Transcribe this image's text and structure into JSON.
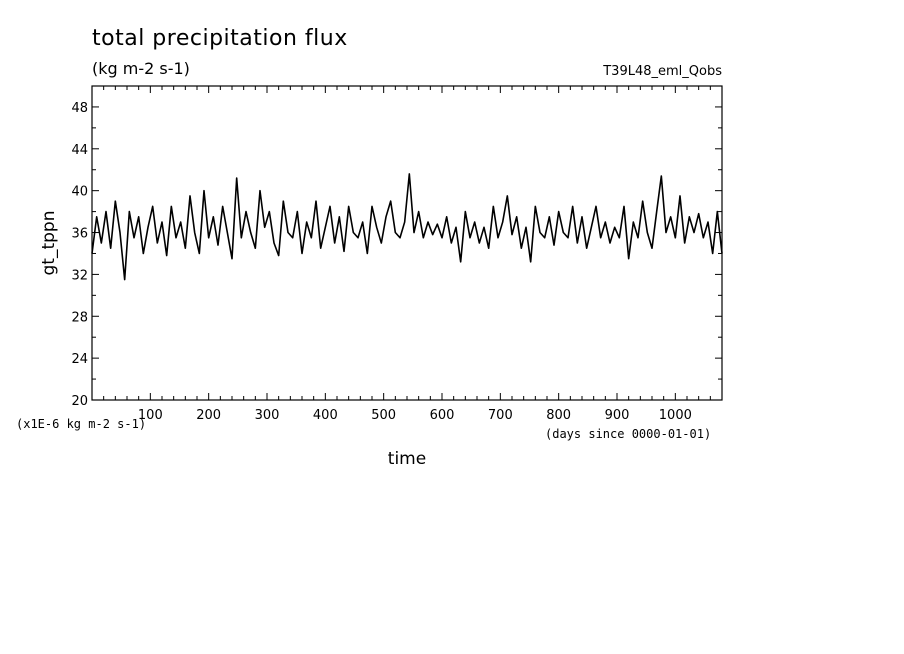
{
  "chart_data": {
    "type": "line",
    "title": "total precipitation flux",
    "subtitle": "(kg m-2 s-1)",
    "run_label": "T39L48_eml_Qobs",
    "xlabel": "time",
    "ylabel": "gt_tppn",
    "y_scale_note": "(x1E-6 kg m-2 s-1)",
    "x_units": "(days since 0000-01-01)",
    "xlim": [
      0,
      1080
    ],
    "ylim": [
      20,
      50
    ],
    "x_ticks": [
      100,
      200,
      300,
      400,
      500,
      600,
      700,
      800,
      900,
      1000
    ],
    "y_ticks": [
      20,
      24,
      28,
      32,
      36,
      40,
      44,
      48
    ],
    "grid": false,
    "line_color": "#000000",
    "series": [
      {
        "x": [
          0,
          8,
          16,
          24,
          32,
          40,
          48,
          56,
          64,
          72,
          80,
          88,
          96,
          104,
          112,
          120,
          128,
          136,
          144,
          152,
          160,
          168,
          176,
          184,
          192,
          200,
          208,
          216,
          224,
          232,
          240,
          248,
          256,
          264,
          272,
          280,
          288,
          296,
          304,
          312,
          320,
          328,
          336,
          344,
          352,
          360,
          368,
          376,
          384,
          392,
          400,
          408,
          416,
          424,
          432,
          440,
          448,
          456,
          464,
          472,
          480,
          488,
          496,
          504,
          512,
          520,
          528,
          536,
          544,
          552,
          560,
          568,
          576,
          584,
          592,
          600,
          608,
          616,
          624,
          632,
          640,
          648,
          656,
          664,
          672,
          680,
          688,
          696,
          704,
          712,
          720,
          728,
          736,
          744,
          752,
          760,
          768,
          776,
          784,
          792,
          800,
          808,
          816,
          824,
          832,
          840,
          848,
          856,
          864,
          872,
          880,
          888,
          896,
          904,
          912,
          920,
          928,
          936,
          944,
          952,
          960,
          968,
          976,
          984,
          992,
          1000,
          1008,
          1016,
          1024,
          1032,
          1040,
          1048,
          1056,
          1064,
          1072,
          1080
        ],
        "values": [
          34.0,
          37.5,
          35.0,
          38.0,
          34.5,
          39.0,
          36.0,
          31.5,
          38.0,
          35.5,
          37.5,
          34.0,
          36.5,
          38.5,
          35.0,
          37.0,
          33.8,
          38.5,
          35.5,
          37.0,
          34.5,
          39.5,
          36.0,
          34.0,
          40.0,
          35.5,
          37.5,
          34.8,
          38.5,
          36.0,
          33.5,
          41.2,
          35.5,
          38.0,
          36.0,
          34.5,
          40.0,
          36.5,
          38.0,
          35.0,
          33.8,
          39.0,
          36.0,
          35.5,
          38.0,
          34.0,
          37.0,
          35.5,
          39.0,
          34.5,
          36.5,
          38.5,
          35.0,
          37.5,
          34.2,
          38.5,
          36.0,
          35.5,
          37.0,
          34.0,
          38.5,
          36.5,
          35.0,
          37.5,
          39.0,
          36.0,
          35.5,
          37.0,
          41.6,
          36.0,
          38.0,
          35.5,
          37.0,
          35.8,
          36.8,
          35.5,
          37.5,
          35.0,
          36.5,
          33.2,
          38.0,
          35.5,
          37.0,
          35.0,
          36.5,
          34.5,
          38.5,
          35.5,
          37.0,
          39.5,
          35.8,
          37.5,
          34.5,
          36.5,
          33.2,
          38.5,
          36.0,
          35.5,
          37.5,
          34.8,
          38.0,
          36.0,
          35.5,
          38.5,
          35.0,
          37.5,
          34.5,
          36.5,
          38.5,
          35.5,
          37.0,
          35.0,
          36.5,
          35.5,
          38.5,
          33.5,
          37.0,
          35.5,
          39.0,
          36.0,
          34.5,
          38.0,
          41.4,
          36.0,
          37.5,
          35.5,
          39.5,
          35.0,
          37.5,
          36.0,
          37.8,
          35.5,
          37.0,
          34.0,
          38.0,
          34.0
        ]
      }
    ]
  }
}
